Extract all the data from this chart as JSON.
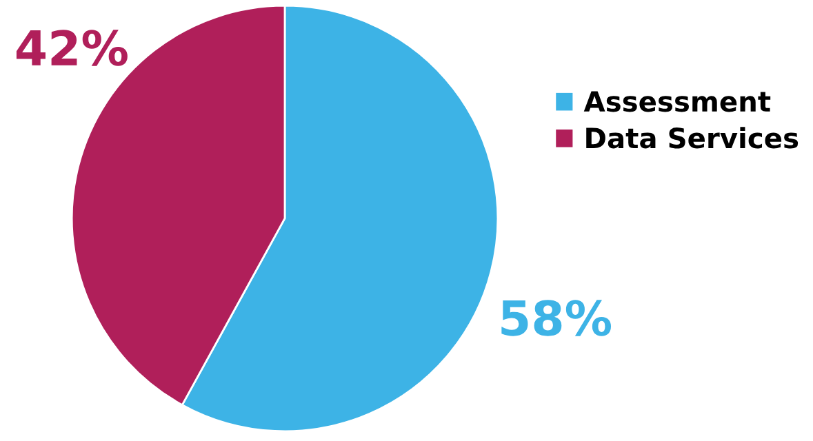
{
  "chart_data": {
    "type": "pie",
    "categories": [
      "Assessment",
      "Data Services"
    ],
    "values": [
      58,
      42
    ],
    "colors": [
      "#3db3e6",
      "#b01f5a"
    ],
    "value_labels": [
      "58%",
      "42%"
    ],
    "legend": "right"
  }
}
